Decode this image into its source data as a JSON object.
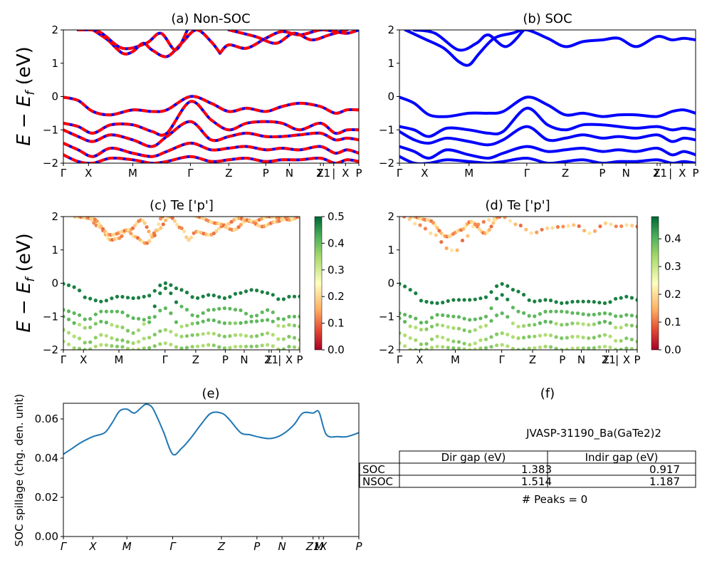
{
  "chart_data": [
    {
      "id": "a",
      "type": "line",
      "title": "(a) Non-SOC",
      "ylabel": "E - E_f (eV)",
      "ylabel_parts": [
        "E",
        " − ",
        "E",
        "f",
        " (eV)"
      ],
      "ylim": [
        -2,
        2
      ],
      "yticks": [
        "2",
        "1",
        "0",
        "−1",
        "−2"
      ],
      "kpoints": [
        "Γ",
        "X",
        "M",
        "Γ",
        "Z",
        "P",
        "N",
        "Σ",
        "Z1",
        "|",
        "X",
        "P"
      ],
      "kpoint_positions": [
        0,
        0.085,
        0.235,
        0.43,
        0.56,
        0.685,
        0.765,
        0.87,
        0.88,
        0.915,
        0.955,
        1.0
      ],
      "series": [
        {
          "values_x": [
            0,
            0.05,
            0.1,
            0.16,
            0.235,
            0.3,
            0.35,
            0.43,
            0.5,
            0.56,
            0.62,
            0.685,
            0.74,
            0.8,
            0.87,
            0.92,
            0.96,
            1.0
          ],
          "values": [
            -0.02,
            -0.12,
            -0.45,
            -0.55,
            -0.4,
            -0.45,
            -0.4,
            0.0,
            -0.2,
            -0.45,
            -0.35,
            -0.45,
            -0.3,
            -0.2,
            -0.3,
            -0.5,
            -0.4,
            -0.4
          ]
        },
        {
          "values_x": [
            0,
            0.05,
            0.1,
            0.16,
            0.235,
            0.3,
            0.35,
            0.43,
            0.5,
            0.56,
            0.62,
            0.685,
            0.74,
            0.8,
            0.87,
            0.92,
            0.96,
            1.0
          ],
          "values": [
            -0.8,
            -0.9,
            -1.1,
            -0.85,
            -0.85,
            -1.05,
            -1.1,
            -0.15,
            -0.7,
            -1.0,
            -0.8,
            -0.75,
            -0.8,
            -1.0,
            -0.8,
            -1.1,
            -1.0,
            -1.0
          ]
        },
        {
          "values_x": [
            0,
            0.05,
            0.1,
            0.16,
            0.235,
            0.3,
            0.35,
            0.43,
            0.5,
            0.56,
            0.62,
            0.685,
            0.74,
            0.8,
            0.87,
            0.92,
            0.96,
            1.0
          ],
          "values": [
            -1.0,
            -1.2,
            -1.35,
            -1.15,
            -1.3,
            -1.5,
            -1.2,
            -0.75,
            -1.3,
            -1.2,
            -1.1,
            -1.2,
            -1.2,
            -1.15,
            -1.1,
            -1.3,
            -1.25,
            -1.3
          ]
        },
        {
          "values_x": [
            0,
            0.05,
            0.1,
            0.16,
            0.235,
            0.3,
            0.35,
            0.43,
            0.5,
            0.56,
            0.62,
            0.685,
            0.74,
            0.8,
            0.87,
            0.92,
            0.96,
            1.0
          ],
          "values": [
            -1.4,
            -1.6,
            -1.8,
            -1.55,
            -1.7,
            -1.8,
            -1.65,
            -1.4,
            -1.6,
            -1.55,
            -1.5,
            -1.6,
            -1.55,
            -1.6,
            -1.5,
            -1.7,
            -1.6,
            -1.7
          ]
        },
        {
          "values_x": [
            0,
            0.05,
            0.1,
            0.16,
            0.235,
            0.3,
            0.35,
            0.43,
            0.5,
            0.56,
            0.62,
            0.685,
            0.74,
            0.8,
            0.87,
            0.92,
            0.96,
            1.0
          ],
          "values": [
            -1.75,
            -1.95,
            -2.0,
            -1.85,
            -1.9,
            -2.0,
            -1.95,
            -1.8,
            -1.95,
            -1.9,
            -1.85,
            -1.95,
            -1.9,
            -1.9,
            -1.85,
            -2.0,
            -1.9,
            -1.95
          ]
        },
        {
          "values_x": [
            0.1,
            0.15,
            0.2,
            0.235,
            0.27,
            0.3,
            0.35,
            0.4,
            0.45,
            0.5,
            0.53
          ],
          "values": [
            2.0,
            1.7,
            1.3,
            1.35,
            1.6,
            1.4,
            1.2,
            1.6,
            2.0,
            1.65,
            1.3
          ]
        },
        {
          "values_x": [
            0.05,
            0.12,
            0.2,
            0.28,
            0.33,
            0.38,
            0.42
          ],
          "values": [
            2.0,
            1.95,
            1.45,
            1.6,
            1.9,
            1.4,
            2.0
          ]
        },
        {
          "values_x": [
            0.53,
            0.56,
            0.62,
            0.685,
            0.74,
            0.8,
            0.87,
            0.92,
            0.96,
            1.0
          ],
          "values": [
            1.3,
            1.55,
            1.45,
            1.75,
            1.95,
            1.85,
            2.0,
            1.95,
            1.9,
            2.0
          ]
        },
        {
          "values_x": [
            0.56,
            0.65,
            0.72,
            0.78,
            0.84,
            0.9,
            0.96
          ],
          "values": [
            2.0,
            1.8,
            1.6,
            1.9,
            1.7,
            1.85,
            2.0
          ]
        }
      ]
    },
    {
      "id": "b",
      "type": "line",
      "title": "(b) SOC",
      "ylim": [
        -2,
        2
      ],
      "yticks": [
        "2",
        "1",
        "0",
        "−1",
        "−2"
      ],
      "kpoints": [
        "Γ",
        "X",
        "M",
        "Γ",
        "Z",
        "P",
        "N",
        "Σ",
        "Z1",
        "|",
        "X",
        "P"
      ],
      "kpoint_positions": [
        0,
        0.085,
        0.235,
        0.43,
        0.56,
        0.685,
        0.765,
        0.87,
        0.88,
        0.915,
        0.955,
        1.0
      ],
      "series": [
        {
          "values_x": [
            0,
            0.05,
            0.1,
            0.16,
            0.235,
            0.3,
            0.35,
            0.43,
            0.5,
            0.56,
            0.62,
            0.685,
            0.74,
            0.8,
            0.87,
            0.92,
            0.96,
            1.0
          ],
          "values": [
            -0.02,
            -0.2,
            -0.55,
            -0.6,
            -0.5,
            -0.5,
            -0.45,
            -0.02,
            -0.25,
            -0.55,
            -0.5,
            -0.6,
            -0.55,
            -0.55,
            -0.6,
            -0.45,
            -0.4,
            -0.5
          ]
        },
        {
          "values_x": [
            0,
            0.05,
            0.1,
            0.16,
            0.235,
            0.3,
            0.35,
            0.43,
            0.5,
            0.56,
            0.62,
            0.685,
            0.74,
            0.8,
            0.87,
            0.92,
            0.96,
            1.0
          ],
          "values": [
            -0.9,
            -1.0,
            -1.2,
            -0.95,
            -1.0,
            -1.1,
            -1.05,
            -0.35,
            -0.85,
            -1.0,
            -0.85,
            -0.85,
            -0.9,
            -0.95,
            -0.9,
            -1.0,
            -0.95,
            -1.0
          ]
        },
        {
          "values_x": [
            0,
            0.05,
            0.1,
            0.16,
            0.235,
            0.3,
            0.35,
            0.43,
            0.5,
            0.56,
            0.62,
            0.685,
            0.74,
            0.8,
            0.87,
            0.92,
            0.96,
            1.0
          ],
          "values": [
            -1.05,
            -1.3,
            -1.4,
            -1.25,
            -1.35,
            -1.45,
            -1.3,
            -0.9,
            -1.3,
            -1.25,
            -1.15,
            -1.25,
            -1.2,
            -1.25,
            -1.15,
            -1.35,
            -1.25,
            -1.3
          ]
        },
        {
          "values_x": [
            0,
            0.05,
            0.1,
            0.16,
            0.235,
            0.3,
            0.35,
            0.43,
            0.5,
            0.56,
            0.62,
            0.685,
            0.74,
            0.8,
            0.87,
            0.92,
            0.96,
            1.0
          ],
          "values": [
            -1.5,
            -1.65,
            -1.85,
            -1.6,
            -1.75,
            -1.85,
            -1.7,
            -1.5,
            -1.65,
            -1.6,
            -1.55,
            -1.65,
            -1.6,
            -1.65,
            -1.55,
            -1.75,
            -1.65,
            -1.75
          ]
        },
        {
          "values_x": [
            0,
            0.05,
            0.1,
            0.16,
            0.235,
            0.3,
            0.35,
            0.43,
            0.5,
            0.56,
            0.62,
            0.685,
            0.74,
            0.8,
            0.87,
            0.92,
            0.96,
            1.0
          ],
          "values": [
            -1.8,
            -2.0,
            -2.0,
            -1.9,
            -1.95,
            -2.0,
            -1.95,
            -1.85,
            -2.0,
            -1.95,
            -1.9,
            -2.0,
            -1.95,
            -1.95,
            -1.9,
            -2.0,
            -1.95,
            -2.0
          ]
        },
        {
          "values_x": [
            0.02,
            0.08,
            0.15,
            0.2,
            0.235,
            0.27,
            0.32,
            0.38,
            0.43,
            0.5,
            0.56,
            0.62,
            0.685,
            0.74,
            0.8,
            0.87,
            0.92,
            0.96,
            1.0
          ],
          "values": [
            2.0,
            1.75,
            1.45,
            1.05,
            0.95,
            1.3,
            1.75,
            1.9,
            2.0,
            1.75,
            1.5,
            1.65,
            1.7,
            1.75,
            1.5,
            1.8,
            1.7,
            1.75,
            1.7
          ]
        },
        {
          "values_x": [
            0.05,
            0.12,
            0.2,
            0.26,
            0.3,
            0.36,
            0.42
          ],
          "values": [
            2.0,
            1.9,
            1.4,
            1.6,
            1.85,
            1.5,
            2.0
          ]
        }
      ]
    },
    {
      "id": "c",
      "type": "scatter",
      "title": "(c)  Te ['p']",
      "ylabel": "E - E_f (eV)",
      "ylim": [
        -2,
        2
      ],
      "colorbar": {
        "min": 0.0,
        "max": 0.5,
        "ticks": [
          "0.5",
          "0.4",
          "0.3",
          "0.2",
          "0.1",
          "0.0"
        ]
      },
      "kpoints": [
        "Γ",
        "X",
        "M",
        "Γ",
        "Z",
        "P",
        "N",
        "Σ",
        "Z1",
        "|",
        "X",
        "P"
      ],
      "kpoint_positions": [
        0,
        0.085,
        0.235,
        0.43,
        0.56,
        0.685,
        0.765,
        0.87,
        0.88,
        0.915,
        0.955,
        1.0
      ]
    },
    {
      "id": "d",
      "type": "scatter",
      "title": "(d) Te ['p']",
      "ylim": [
        -2,
        2
      ],
      "colorbar": {
        "min": 0.0,
        "max": 0.48,
        "ticks": [
          "0.4",
          "0.3",
          "0.2",
          "0.1",
          "0.0"
        ]
      },
      "kpoints": [
        "Γ",
        "X",
        "M",
        "Γ",
        "Z",
        "P",
        "N",
        "Σ",
        "Z1",
        "|",
        "X",
        "P"
      ],
      "kpoint_positions": [
        0,
        0.085,
        0.235,
        0.43,
        0.56,
        0.685,
        0.765,
        0.87,
        0.88,
        0.915,
        0.955,
        1.0
      ]
    },
    {
      "id": "e",
      "type": "line",
      "title": "(e)",
      "ylabel": "SOC spillage (chg. den. unit)",
      "ylim": [
        0.0,
        0.068
      ],
      "yticks": [
        "0.06",
        "0.04",
        "0.02",
        "0.00"
      ],
      "kpoints": [
        "Γ",
        "X",
        "M",
        "Γ",
        "Z",
        "P",
        "N",
        "Z1",
        "M",
        "X",
        "P"
      ],
      "kpoint_positions": [
        0,
        0.1,
        0.215,
        0.37,
        0.535,
        0.655,
        0.74,
        0.845,
        0.865,
        0.88,
        1.0
      ],
      "series": [
        {
          "x": [
            0,
            0.03,
            0.06,
            0.1,
            0.14,
            0.165,
            0.19,
            0.215,
            0.24,
            0.265,
            0.28,
            0.3,
            0.32,
            0.34,
            0.37,
            0.4,
            0.43,
            0.47,
            0.5,
            0.535,
            0.56,
            0.6,
            0.63,
            0.655,
            0.7,
            0.74,
            0.78,
            0.81,
            0.845,
            0.865,
            0.89,
            0.93,
            0.96,
            1.0
          ],
          "y": [
            0.042,
            0.045,
            0.048,
            0.051,
            0.053,
            0.058,
            0.064,
            0.065,
            0.063,
            0.066,
            0.0675,
            0.066,
            0.06,
            0.053,
            0.042,
            0.045,
            0.05,
            0.058,
            0.063,
            0.063,
            0.06,
            0.053,
            0.052,
            0.051,
            0.05,
            0.052,
            0.057,
            0.063,
            0.063,
            0.0635,
            0.052,
            0.051,
            0.051,
            0.053
          ]
        }
      ]
    }
  ],
  "panel_f": {
    "title": "(f)",
    "material": "JVASP-31190_Ba(GaTe2)2",
    "headers": [
      "Dir gap (eV)",
      "Indir gap (eV)"
    ],
    "rows": [
      {
        "label": "SOC",
        "dir": "1.383",
        "indir": "0.917"
      },
      {
        "label": "NSOC",
        "dir": "1.514",
        "indir": "1.187"
      }
    ],
    "peaks": "# Peaks = 0"
  }
}
